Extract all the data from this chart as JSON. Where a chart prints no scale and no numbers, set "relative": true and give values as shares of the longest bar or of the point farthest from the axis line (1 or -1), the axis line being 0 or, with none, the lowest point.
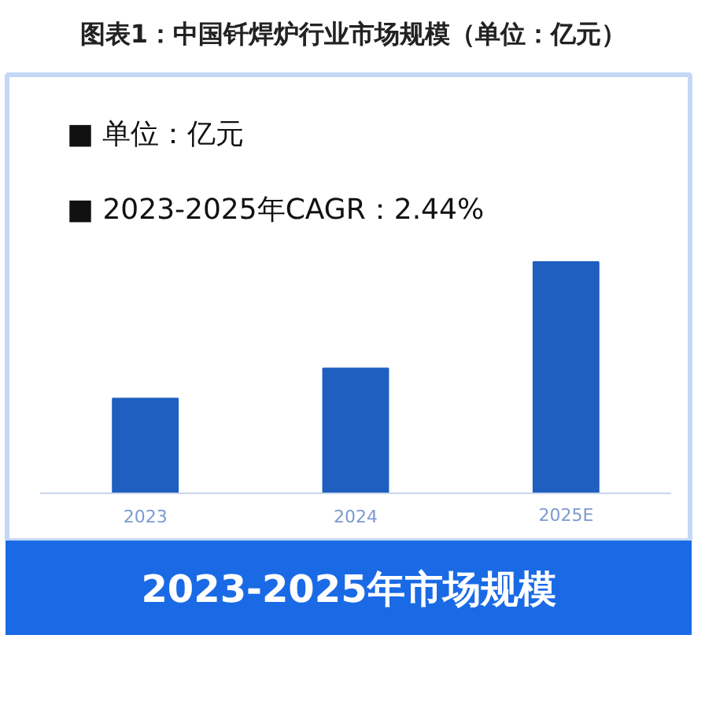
{
  "chart_data": {
    "type": "bar",
    "title": "图表1：中国钎焊炉行业市场规模（单位：亿元）",
    "annotations": [
      "■ 单位：亿元",
      "■ 2023-2025年CAGR：2.44%",
      "2023-2025年市场规模"
    ],
    "categories": [
      "2023",
      "2024",
      "2025E"
    ],
    "values": [
      0.41,
      0.54,
      1
    ],
    "relative": true,
    "color": "#1e5fbf"
  }
}
